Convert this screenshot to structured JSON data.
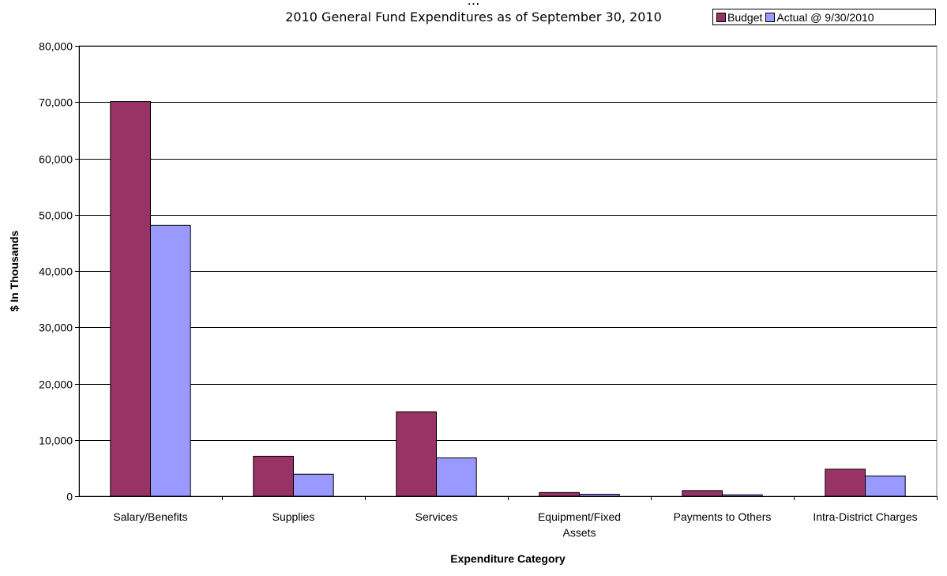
{
  "chart_data": {
    "type": "bar",
    "title": "…",
    "subtitle": "2010 General Fund Expenditures as of September 30, 2010",
    "xlabel": "Expenditure Category",
    "ylabel": "$ In Thousands",
    "categories": [
      [
        "Salary/Benefits"
      ],
      [
        "Supplies"
      ],
      [
        "Services"
      ],
      [
        "Equipment/Fixed",
        "Assets"
      ],
      [
        "Payments to Others"
      ],
      [
        "Intra-District Charges"
      ]
    ],
    "series": [
      {
        "name": "Budget",
        "color": "#993366",
        "values": [
          70100,
          7100,
          15000,
          650,
          1000,
          4800
        ]
      },
      {
        "name": "Actual @ 9/30/2010",
        "color": "#9999ff",
        "values": [
          48100,
          3900,
          6800,
          350,
          250,
          3600
        ]
      }
    ],
    "ylim": [
      0,
      80000
    ],
    "yticks": [
      0,
      10000,
      20000,
      30000,
      40000,
      50000,
      60000,
      70000,
      80000
    ],
    "ytick_labels": [
      "0",
      "10,000",
      "20,000",
      "30,000",
      "40,000",
      "50,000",
      "60,000",
      "70,000",
      "80,000"
    ],
    "grid": true,
    "legend_position": "top-right"
  }
}
